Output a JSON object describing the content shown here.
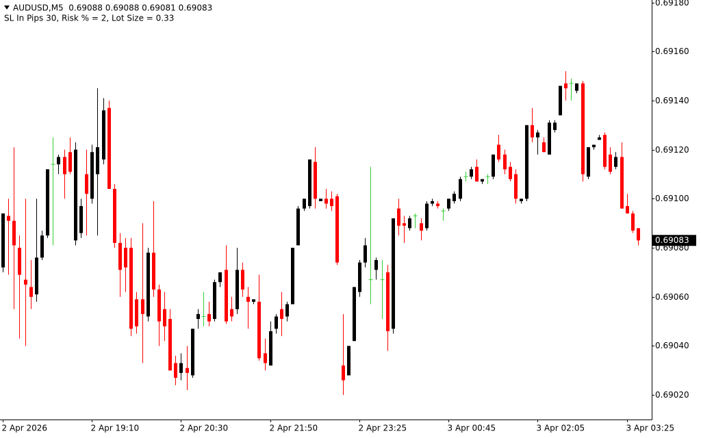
{
  "chart_data": {
    "type": "candlestick",
    "title": "AUDUSD,M5  0.69088 0.69088 0.69081 0.69083",
    "subtitle": "SL In Pips 30, Risk % = 2, Lot Size = 0.33",
    "up_color": "#000000",
    "down_color": "#ff0000",
    "doji_color": "#32cd32",
    "last_price": 0.69083,
    "ylim": [
      0.6901,
      0.69181
    ],
    "yticks": [
      {
        "value": 0.6918,
        "label": "0.69180"
      },
      {
        "value": 0.6916,
        "label": "0.69160"
      },
      {
        "value": 0.6914,
        "label": "0.69140"
      },
      {
        "value": 0.6912,
        "label": "0.69120"
      },
      {
        "value": 0.691,
        "label": "0.69100"
      },
      {
        "value": 0.6908,
        "label": "0.69080"
      },
      {
        "value": 0.6906,
        "label": "0.69060"
      },
      {
        "value": 0.6904,
        "label": "0.69040"
      },
      {
        "value": 0.6902,
        "label": "0.69020"
      }
    ],
    "categories": [
      "2 Apr 2026",
      null,
      null,
      null,
      null,
      null,
      null,
      null,
      null,
      null,
      null,
      null,
      null,
      null,
      null,
      null,
      "2 Apr 19:10",
      null,
      null,
      null,
      null,
      null,
      null,
      null,
      null,
      null,
      null,
      null,
      null,
      null,
      null,
      null,
      "2 Apr 20:30",
      null,
      null,
      null,
      null,
      null,
      null,
      null,
      null,
      null,
      null,
      null,
      null,
      null,
      null,
      null,
      "2 Apr 21:50",
      null,
      null,
      null,
      null,
      null,
      null,
      null,
      null,
      null,
      null,
      null,
      null,
      null,
      null,
      null,
      "2 Apr 23:25",
      null,
      null,
      null,
      null,
      null,
      null,
      null,
      null,
      null,
      null,
      null,
      null,
      null,
      null,
      null,
      "3 Apr 00:45",
      null,
      null,
      null,
      null,
      null,
      null,
      null,
      null,
      null,
      null,
      null,
      null,
      null,
      null,
      null,
      "3 Apr 02:05",
      null,
      null,
      null,
      null,
      null,
      null,
      null,
      null,
      null,
      null,
      null,
      null,
      null,
      null,
      null,
      "3 Apr 03:25",
      null,
      null
    ],
    "open": [
      0.69072,
      0.69093,
      0.69091,
      0.6908,
      0.69067,
      0.69064,
      0.69061,
      0.69076,
      0.69085,
      0.69114,
      0.69114,
      0.69117,
      0.69119,
      0.69083,
      0.69086,
      0.6911,
      0.691,
      0.6911,
      0.69116,
      0.69137,
      0.69104,
      0.69082,
      0.6908,
      0.6908,
      0.69059,
      0.69059,
      0.69052,
      0.69078,
      0.69063,
      0.69055,
      0.69051,
      0.69033,
      0.69029,
      0.69031,
      0.69028,
      0.69051,
      0.69052,
      0.69053,
      0.69051,
      0.69066,
      0.69071,
      0.69055,
      0.69055,
      0.69071,
      0.6906,
      0.69058,
      0.69058,
      0.69037,
      0.69032,
      0.69047,
      0.69055,
      0.69052,
      0.69057,
      0.69081,
      0.69096,
      0.69097,
      0.69115,
      0.69099,
      0.691,
      0.691,
      0.69101,
      0.69032,
      0.69028,
      0.69042,
      0.69062,
      0.69074,
      0.69067,
      0.69071,
      0.69067,
      0.6907,
      0.69047,
      0.69096,
      0.6909,
      0.69088,
      0.69093,
      0.6909,
      0.69088,
      0.69098,
      0.69098,
      0.69095,
      0.69096,
      0.69099,
      0.691,
      0.69109,
      0.69109,
      0.69113,
      0.69107,
      0.69109,
      0.69109,
      0.69122,
      0.69118,
      0.69113,
      0.6911,
      0.69099,
      0.691,
      0.6913,
      0.69125,
      0.69123,
      0.69118,
      0.69128,
      0.69134,
      0.69147,
      0.69147,
      0.69144,
      0.69147,
      0.69109,
      0.69121,
      0.69124,
      0.69126,
      0.69118,
      0.69113,
      0.69117,
      0.69097,
      0.69094,
      0.69088
    ],
    "high": [
      0.69094,
      0.691,
      0.69121,
      0.69085,
      0.691,
      0.69075,
      0.691,
      0.69087,
      0.69112,
      0.69125,
      0.69118,
      0.6912,
      0.69125,
      0.69123,
      0.691,
      0.6912,
      0.69122,
      0.69145,
      0.69141,
      0.6914,
      0.69106,
      0.69086,
      0.69084,
      0.69084,
      0.69062,
      0.6909,
      0.6908,
      0.69099,
      0.69065,
      0.69062,
      0.69055,
      0.69036,
      0.69037,
      0.6904,
      0.69047,
      0.69055,
      0.69062,
      0.69058,
      0.69067,
      0.6907,
      0.69081,
      0.6906,
      0.6908,
      0.69074,
      0.69064,
      0.69059,
      0.69069,
      0.69043,
      0.6905,
      0.69053,
      0.69062,
      0.69058,
      0.6908,
      0.69097,
      0.691,
      0.69116,
      0.69121,
      0.691,
      0.69104,
      0.69103,
      0.69102,
      0.69053,
      0.6904,
      0.69064,
      0.69075,
      0.69084,
      0.69113,
      0.69076,
      0.69075,
      0.69073,
      0.69092,
      0.691,
      0.69093,
      0.69093,
      0.69094,
      0.69092,
      0.69099,
      0.691,
      0.69099,
      0.69096,
      0.691,
      0.69103,
      0.69109,
      0.69111,
      0.69113,
      0.69116,
      0.69108,
      0.6911,
      0.69118,
      0.69126,
      0.6912,
      0.69115,
      0.69112,
      0.691,
      0.6913,
      0.69137,
      0.69128,
      0.69125,
      0.69132,
      0.69132,
      0.69146,
      0.69152,
      0.69149,
      0.69147,
      0.69148,
      0.69121,
      0.69122,
      0.69126,
      0.69127,
      0.69121,
      0.69119,
      0.69123,
      0.69102,
      0.69095,
      0.69088
    ],
    "low": [
      0.6907,
      0.69069,
      0.69055,
      0.69043,
      0.6904,
      0.69055,
      0.69058,
      0.69075,
      0.69084,
      0.69081,
      0.6911,
      0.691,
      0.6911,
      0.69081,
      0.69084,
      0.69085,
      0.69098,
      0.69085,
      0.69114,
      0.69104,
      0.6908,
      0.6906,
      0.69062,
      0.69044,
      0.69045,
      0.69033,
      0.6905,
      0.6906,
      0.6904,
      0.69042,
      0.6903,
      0.69024,
      0.69026,
      0.69022,
      0.69027,
      0.69047,
      0.69048,
      0.69048,
      0.6905,
      0.69064,
      0.69049,
      0.6905,
      0.69053,
      0.6906,
      0.69047,
      0.69057,
      0.69034,
      0.6903,
      0.69032,
      0.69045,
      0.69044,
      0.6905,
      0.69057,
      0.69081,
      0.69095,
      0.69096,
      0.69096,
      0.69099,
      0.69096,
      0.69095,
      0.69073,
      0.6902,
      0.69028,
      0.69042,
      0.6906,
      0.69072,
      0.69057,
      0.69067,
      0.69051,
      0.69038,
      0.69045,
      0.69085,
      0.69082,
      0.69087,
      0.69088,
      0.69083,
      0.69087,
      0.69097,
      0.69096,
      0.69091,
      0.69095,
      0.69098,
      0.69099,
      0.69107,
      0.69108,
      0.69107,
      0.69106,
      0.69106,
      0.69108,
      0.69115,
      0.6911,
      0.69107,
      0.69098,
      0.69098,
      0.69099,
      0.69123,
      0.69118,
      0.69119,
      0.69118,
      0.69127,
      0.69134,
      0.6914,
      0.6914,
      0.69143,
      0.69107,
      0.69108,
      0.6912,
      0.69124,
      0.69112,
      0.6911,
      0.69112,
      0.69096,
      0.69094,
      0.69086,
      0.69081
    ],
    "close": [
      0.69094,
      0.69091,
      0.69081,
      0.69069,
      0.69065,
      0.6906,
      0.69076,
      0.69085,
      0.69112,
      0.69114,
      0.69117,
      0.6911,
      0.69111,
      0.6912,
      0.69097,
      0.69102,
      0.69119,
      0.69121,
      0.69136,
      0.69104,
      0.69082,
      0.69071,
      0.69072,
      0.69047,
      0.69048,
      0.69053,
      0.69078,
      0.69063,
      0.6905,
      0.69048,
      0.6903,
      0.69027,
      0.69033,
      0.69029,
      0.69047,
      0.69053,
      0.69052,
      0.6905,
      0.69066,
      0.6907,
      0.6905,
      0.69052,
      0.69071,
      0.69063,
      0.69058,
      0.69059,
      0.69035,
      0.69033,
      0.69046,
      0.69052,
      0.69051,
      0.69057,
      0.6908,
      0.69096,
      0.691,
      0.69116,
      0.691,
      0.691,
      0.69098,
      0.69097,
      0.69074,
      0.69026,
      0.6904,
      0.69064,
      0.69074,
      0.69081,
      0.69067,
      0.69075,
      0.69067,
      0.69046,
      0.69092,
      0.69089,
      0.69089,
      0.69092,
      0.69093,
      0.69087,
      0.69098,
      0.69099,
      0.69097,
      0.69095,
      0.691,
      0.69102,
      0.69108,
      0.69109,
      0.69112,
      0.69107,
      0.69108,
      0.69109,
      0.69118,
      0.69116,
      0.69112,
      0.69108,
      0.691,
      0.691,
      0.6913,
      0.69125,
      0.69127,
      0.69119,
      0.69131,
      0.69131,
      0.69146,
      0.69145,
      0.69147,
      0.69147,
      0.6911,
      0.69121,
      0.69122,
      0.69125,
      0.69113,
      0.69111,
      0.69117,
      0.69096,
      0.69094,
      0.69087,
      0.69083
    ]
  }
}
